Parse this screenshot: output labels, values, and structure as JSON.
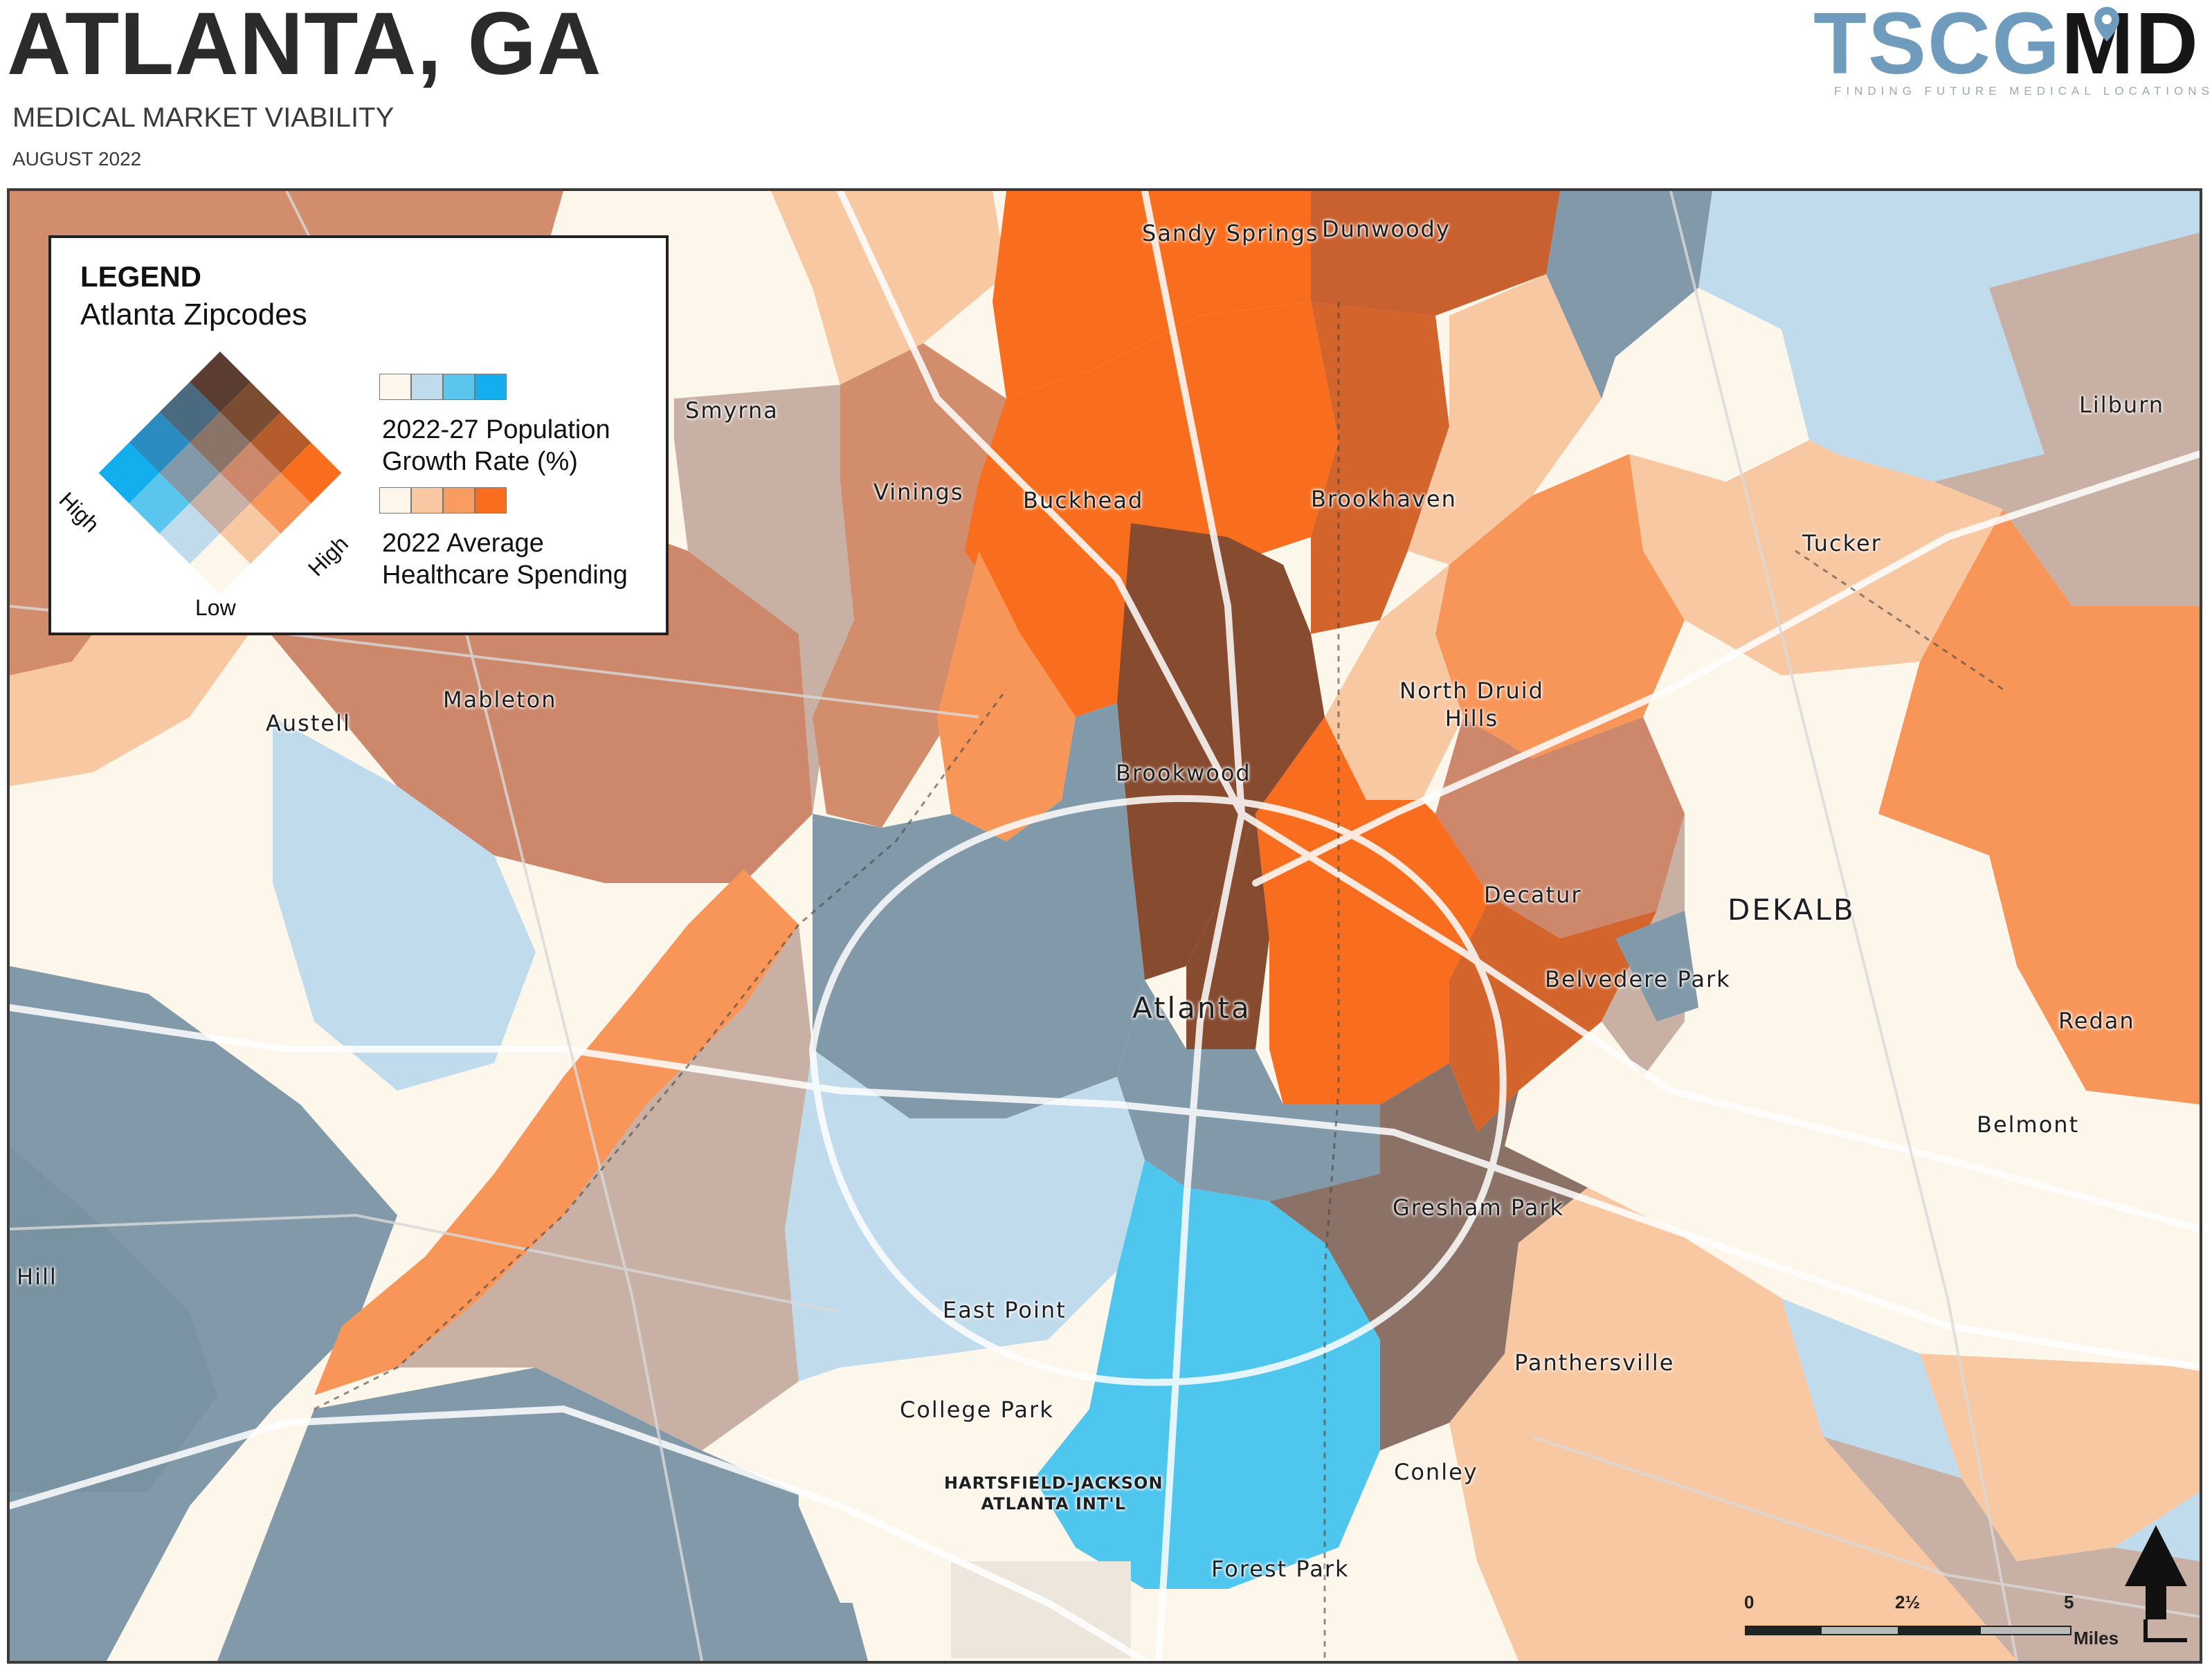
{
  "header": {
    "title": "ATLANTA, GA",
    "subtitle": "MEDICAL MARKET VIABILITY",
    "date": "AUGUST 2022"
  },
  "logo": {
    "text_light": "TSCG",
    "text_dark": "MD",
    "tagline": "FINDING FUTURE MEDICAL LOCATIONS"
  },
  "legend": {
    "title": "LEGEND",
    "subtitle": "Atlanta Zipcodes",
    "population_label_1": "2022-27 Population",
    "population_label_2": "Growth Rate (%)",
    "spending_label_1": "2022 Average",
    "spending_label_2": "Healthcare Spending",
    "low_label": "Low",
    "high_left_label": "High",
    "high_right_label": "High",
    "population_colors": [
      "#fdf6ea",
      "#c0dcec",
      "#5ac6ee",
      "#12aeee"
    ],
    "spending_colors": [
      "#fdf6ea",
      "#f8c8a2",
      "#f89c62",
      "#f86e1e"
    ]
  },
  "places": {
    "sandy_springs": "Sandy Springs",
    "dunwoody": "Dunwoody",
    "smyrna": "Smyrna",
    "lilburn": "Lilburn",
    "vinings": "Vinings",
    "buckhead": "Buckhead",
    "brookhaven": "Brookhaven",
    "tucker": "Tucker",
    "mableton": "Mableton",
    "austell": "Austell",
    "north_druid_hills_1": "North Druid",
    "north_druid_hills_2": "Hills",
    "brookwood": "Brookwood",
    "dekalb": "DEKALB",
    "decatur": "Decatur",
    "belvedere_park": "Belvedere Park",
    "redan": "Redan",
    "atlanta": "Atlanta",
    "belmont": "Belmont",
    "gresham_park": "Gresham Park",
    "hill": "Hill",
    "east_point": "East Point",
    "panthersville": "Panthersville",
    "college_park": "College Park",
    "airport_1": "HARTSFIELD-JACKSON",
    "airport_2": "ATLANTA INT'L",
    "conley": "Conley",
    "forest_park": "Forest Park"
  },
  "scale_bar": {
    "label_0": "0",
    "label_mid": "2½",
    "label_max": "5",
    "unit": "Miles"
  }
}
